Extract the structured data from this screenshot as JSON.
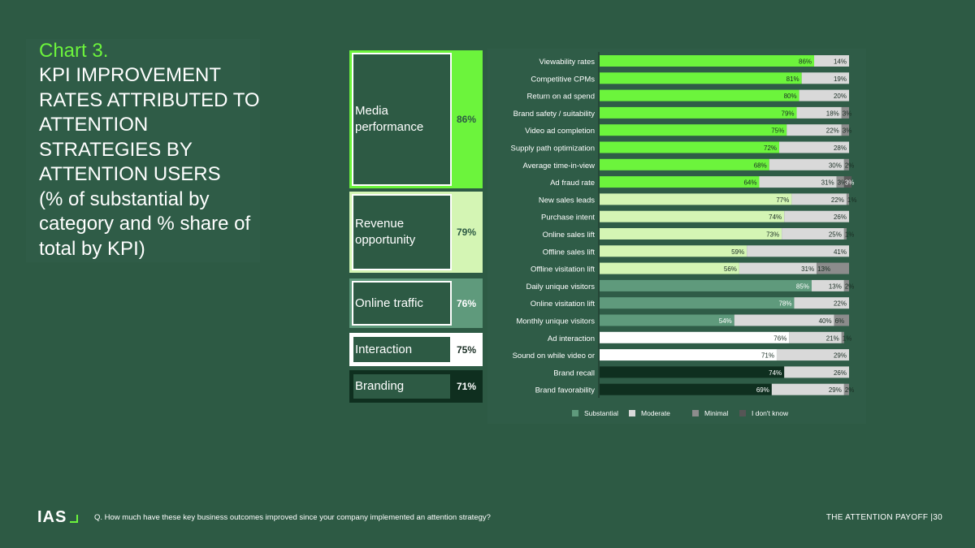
{
  "header": {
    "chart_label": "Chart 3.",
    "title": "KPI IMPROVEMENT RATES ATTRIBUTED TO ATTENTION STRATEGIES BY ATTENTION USERS",
    "subtitle": "(% of substantial by category and % share of total by KPI)"
  },
  "categories": [
    {
      "name": "Media performance",
      "pct": "86%",
      "color": "#6cf43c",
      "text": "#2d5a44"
    },
    {
      "name": "Revenue opportunity",
      "pct": "79%",
      "color": "#d4f5b4",
      "text": "#2d5a44"
    },
    {
      "name": "Online traffic",
      "pct": "76%",
      "color": "#5f9a7c",
      "text": "#ffffff"
    },
    {
      "name": "Interaction",
      "pct": "75%",
      "color": "#ffffff",
      "text": "#1a2e24"
    },
    {
      "name": "Branding",
      "pct": "71%",
      "color": "#0f2f1f",
      "text": "#ffffff"
    }
  ],
  "chart_data": {
    "type": "bar",
    "stacked": true,
    "orientation": "horizontal",
    "categories": [
      "Viewability rates",
      "Competitive CPMs",
      "Return on ad spend",
      "Brand safety / suitability",
      "Video ad completion",
      "Supply path optimization",
      "Average time-in-view",
      "Ad fraud rate",
      "New sales leads",
      "Purchase intent",
      "Online sales lift",
      "Offline sales lift",
      "Offline visitation lift",
      "Daily unique visitors",
      "Online visitation lift",
      "Monthly unique visitors",
      "Ad interaction",
      "Sound on while video or",
      "Brand recall",
      "Brand favorability"
    ],
    "group": [
      0,
      0,
      0,
      0,
      0,
      0,
      0,
      0,
      1,
      1,
      1,
      1,
      1,
      2,
      2,
      2,
      3,
      3,
      4,
      4
    ],
    "series": [
      {
        "name": "Substantial",
        "values": [
          86,
          81,
          80,
          79,
          75,
          72,
          68,
          64,
          77,
          74,
          73,
          59,
          56,
          85,
          78,
          54,
          76,
          71,
          74,
          69
        ]
      },
      {
        "name": "Moderate",
        "values": [
          14,
          19,
          20,
          18,
          22,
          28,
          30,
          31,
          22,
          26,
          25,
          41,
          31,
          13,
          22,
          40,
          21,
          29,
          26,
          29
        ]
      },
      {
        "name": "Minimal",
        "values": [
          0,
          0,
          0,
          3,
          3,
          0,
          2,
          3,
          1,
          0,
          1,
          0,
          13,
          2,
          0,
          6,
          1,
          0,
          0,
          2
        ]
      },
      {
        "name": "I don't know",
        "values": [
          0,
          0,
          0,
          0,
          0,
          0,
          0,
          3,
          0,
          0,
          0,
          0,
          0,
          0,
          0,
          0,
          0,
          0,
          0,
          0
        ]
      }
    ],
    "legend": [
      "Substantial",
      "Moderate",
      "Minimal",
      "I don't know"
    ],
    "legend_colors": [
      "#5f9a7c",
      "#d9d9d9",
      "#8c8c8c",
      "#555555"
    ],
    "colors": {
      "moderate": "#d9d9d9",
      "minimal": "#8c8c8c",
      "dontknow": "#5a5a5a",
      "panel": "#2f5c47"
    },
    "legend_position": "bottom"
  },
  "footer": {
    "logo": "IAS",
    "question": "Q. How much have these key business outcomes improved since your company implemented an attention strategy?",
    "right": "THE ATTENTION PAYOFF  |30"
  }
}
